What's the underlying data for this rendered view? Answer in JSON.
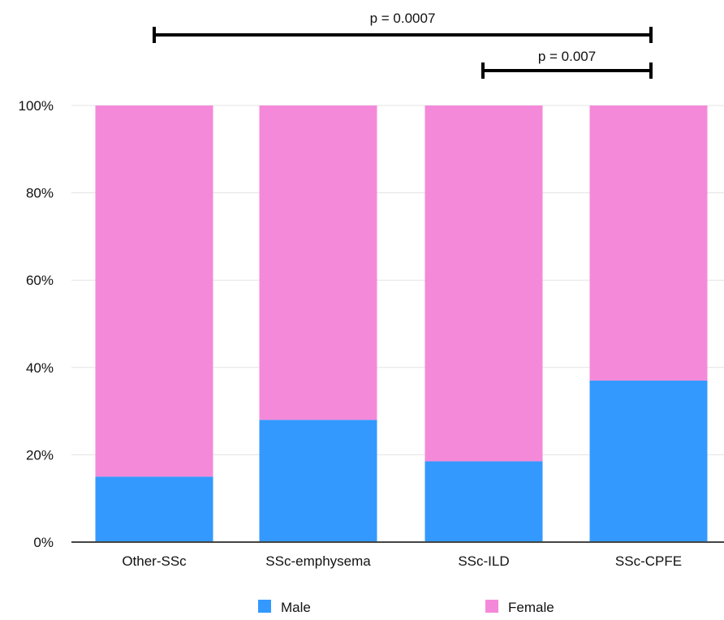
{
  "chart_data": {
    "type": "bar",
    "stacked": true,
    "categories": [
      "Other-SSc",
      "SSc-emphysema",
      "SSc-ILD",
      "SSc-CPFE"
    ],
    "series": [
      {
        "name": "Male",
        "values": [
          15,
          28,
          18.5,
          37
        ],
        "color": "#3399ff"
      },
      {
        "name": "Female",
        "values": [
          85,
          72,
          81.5,
          63
        ],
        "color": "#f589d9"
      }
    ],
    "ylim": [
      0,
      100
    ],
    "yticks": [
      "0%",
      "20%",
      "40%",
      "60%",
      "80%",
      "100%"
    ],
    "ytick_values": [
      0,
      20,
      40,
      60,
      80,
      100
    ],
    "grid": true,
    "legend": "bottom",
    "annotations": [
      {
        "label": "p = 0.0007",
        "from": "Other-SSc",
        "to": "SSc-CPFE"
      },
      {
        "label": "p = 0.007",
        "from": "SSc-ILD",
        "to": "SSc-CPFE"
      }
    ],
    "title": "",
    "xlabel": "",
    "ylabel": ""
  }
}
